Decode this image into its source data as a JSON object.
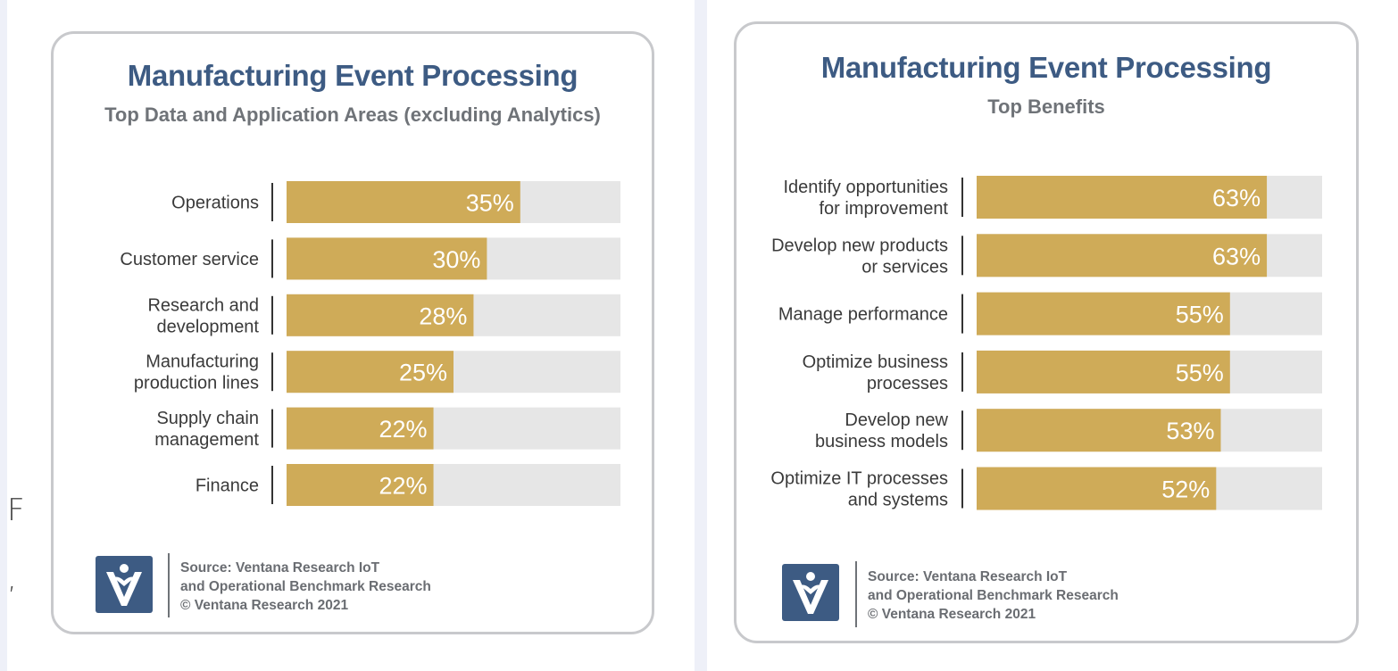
{
  "stray_glyphs": [
    "F",
    ","
  ],
  "colors": {
    "bar_fill": "#cfab58",
    "bar_track": "#e6e6e6",
    "title": "#3d5b83",
    "logo_bg": "#3d5b83"
  },
  "chart_data": [
    {
      "type": "bar",
      "orientation": "horizontal",
      "title": "Manufacturing Event Processing",
      "subtitle": "Top Data and Application Areas (excluding Analytics)",
      "categories": [
        [
          "Operations"
        ],
        [
          "Customer service"
        ],
        [
          "Research and",
          "development"
        ],
        [
          "Manufacturing",
          "production lines"
        ],
        [
          "Supply chain",
          "management"
        ],
        [
          "Finance"
        ]
      ],
      "values": [
        35,
        30,
        28,
        25,
        22,
        22
      ],
      "value_labels": [
        "35%",
        "30%",
        "28%",
        "25%",
        "22%",
        "22%"
      ],
      "xlim": [
        0,
        50
      ],
      "grid": false,
      "source_lines": [
        "Source: Ventana Research IoT",
        "and Operational Benchmark Research",
        "© Ventana Research 2021"
      ]
    },
    {
      "type": "bar",
      "orientation": "horizontal",
      "title": "Manufacturing Event Processing",
      "subtitle": "Top Benefits",
      "categories": [
        [
          "Identify opportunities",
          "for improvement"
        ],
        [
          "Develop new products",
          "or services"
        ],
        [
          "Manage performance"
        ],
        [
          "Optimize business",
          "processes"
        ],
        [
          "Develop new",
          "business models"
        ],
        [
          "Optimize IT processes",
          "and systems"
        ]
      ],
      "values": [
        63,
        63,
        55,
        55,
        53,
        52
      ],
      "value_labels": [
        "63%",
        "63%",
        "55%",
        "55%",
        "53%",
        "52%"
      ],
      "xlim": [
        0,
        75
      ],
      "grid": false,
      "source_lines": [
        "Source: Ventana Research IoT",
        "and Operational Benchmark Research",
        "© Ventana Research 2021"
      ]
    }
  ]
}
